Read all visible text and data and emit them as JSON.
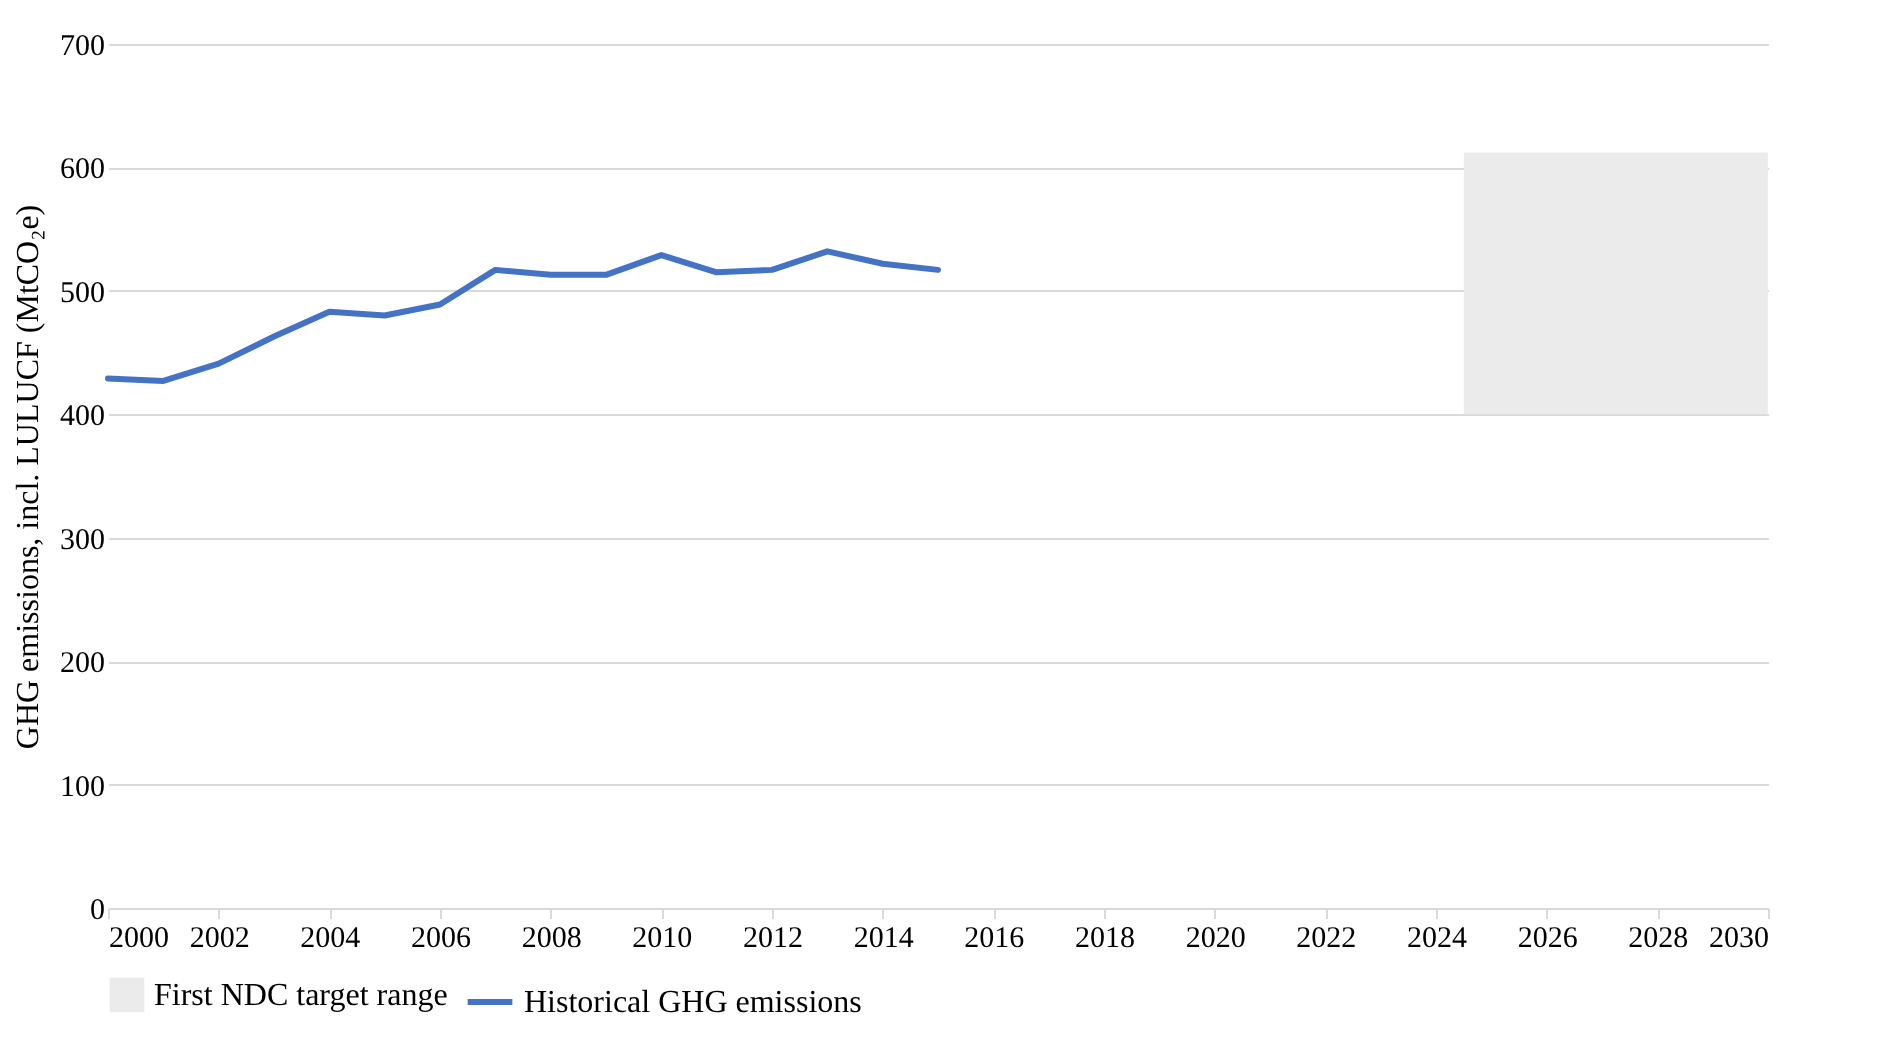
{
  "chart_data": {
    "type": "line",
    "ylabel": "GHG emissions, incl. LULUCF (MtCO₂e)",
    "xlim": [
      2000,
      2030
    ],
    "xticks": [
      2000,
      2002,
      2004,
      2006,
      2008,
      2010,
      2012,
      2014,
      2016,
      2018,
      2020,
      2022,
      2024,
      2026,
      2028,
      2030
    ],
    "ylim": [
      0,
      700
    ],
    "yticks": [
      0,
      100,
      200,
      300,
      400,
      500,
      600,
      700
    ],
    "grid": "y",
    "legend": "bottom",
    "series": [
      {
        "type": "bar",
        "name": "First NDC target range",
        "color": "#ebebeb",
        "x": [
          2027.25
        ],
        "base": [
          400
        ],
        "values": [
          212
        ]
      },
      {
        "name": "Historical GHG emissions",
        "color": "#4472c4",
        "x": [
          2000,
          2001,
          2002,
          2003,
          2004,
          2005,
          2006,
          2007,
          2008,
          2009,
          2010,
          2011,
          2012,
          2013,
          2014,
          2015
        ],
        "values": [
          429,
          427,
          441,
          463,
          483,
          480,
          489,
          517,
          513,
          513,
          529,
          515,
          517,
          532,
          522,
          517
        ]
      }
    ]
  }
}
